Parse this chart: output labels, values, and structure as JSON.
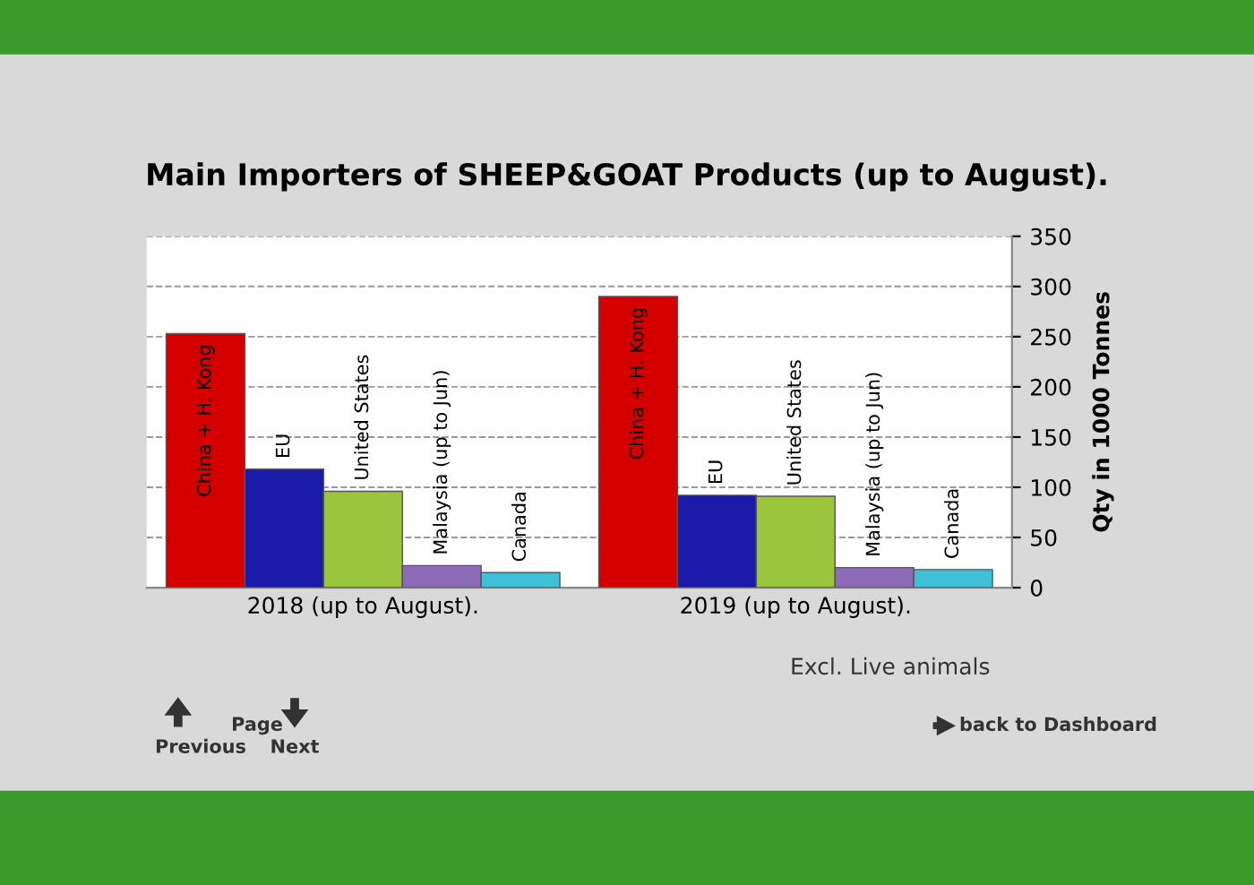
{
  "chart_data": {
    "type": "bar",
    "title": "Main Importers of SHEEP&GOAT Products (up to August).",
    "categories": [
      "2018 (up to August).",
      "2019 (up to August)."
    ],
    "series": [
      {
        "name": "China + H. Kong",
        "color": "#d40000",
        "values": [
          253,
          290
        ]
      },
      {
        "name": "EU",
        "color": "#1a1aa8",
        "values": [
          118,
          92
        ]
      },
      {
        "name": "United States",
        "color": "#9bc53d",
        "values": [
          96,
          91
        ]
      },
      {
        "name": "Malaysia (up to Jun)",
        "color": "#8e6bb8",
        "values": [
          22,
          20
        ]
      },
      {
        "name": "Canada",
        "color": "#40c0d8",
        "values": [
          15,
          18
        ]
      }
    ],
    "ylabel": "Qty in 1000 Tonnes",
    "ylim": [
      0,
      350
    ],
    "yticks": [
      0,
      50,
      100,
      150,
      200,
      250,
      300,
      350
    ],
    "grid": "y",
    "legend": false,
    "annotations": [
      "Excl. Live animals",
      "Previous",
      "Page",
      "Next",
      "back to Dashboard"
    ]
  }
}
